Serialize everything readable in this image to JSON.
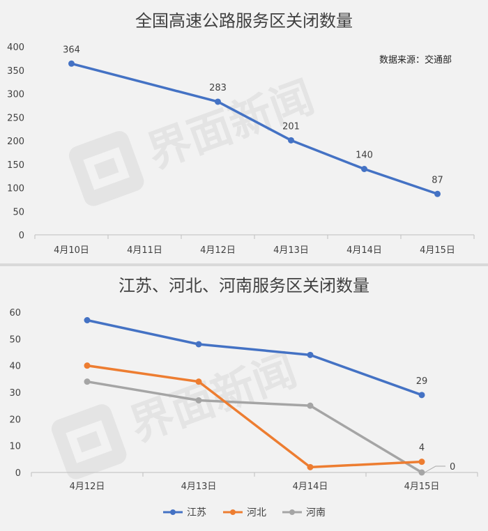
{
  "colors": {
    "jiangsu": "#4472c4",
    "hebei": "#ed7d31",
    "henan": "#a5a5a5",
    "grid": "#d0d0d0",
    "text": "#404040"
  },
  "watermark": {
    "text": "界面新闻",
    "icon": "jiemian-logo-icon"
  },
  "chart_data": [
    {
      "type": "line",
      "title": "全国高速公路服务区关闭数量",
      "annotation": "数据来源：交通部",
      "categories": [
        "4月10日",
        "4月11日",
        "4月12日",
        "4月13日",
        "4月14日",
        "4月15日"
      ],
      "ylim": [
        0,
        400
      ],
      "yticks": [
        0,
        50,
        100,
        150,
        200,
        250,
        300,
        350,
        400
      ],
      "grid": false,
      "series": [
        {
          "values": [
            364,
            283,
            201,
            140,
            87
          ],
          "x": [
            "4月10日",
            "4月12日",
            "4月13日",
            "4月14日",
            "4月15日"
          ],
          "color": "#4472c4"
        }
      ],
      "data_labels": [
        "364",
        "283",
        "201",
        "140",
        "87"
      ]
    },
    {
      "type": "line",
      "title": "江苏、河北、河南服务区关闭数量",
      "categories": [
        "4月12日",
        "4月13日",
        "4月14日",
        "4月15日"
      ],
      "ylim": [
        0,
        60
      ],
      "yticks": [
        0,
        10,
        20,
        30,
        40,
        50,
        60
      ],
      "grid": false,
      "legend": "bottom",
      "series": [
        {
          "name": "江苏",
          "values": [
            57,
            48,
            44,
            29
          ],
          "color": "#4472c4"
        },
        {
          "name": "河北",
          "values": [
            40,
            34,
            2,
            4
          ],
          "color": "#ed7d31"
        },
        {
          "name": "河南",
          "values": [
            34,
            27,
            25,
            0
          ],
          "color": "#a5a5a5"
        }
      ],
      "data_labels": [
        {
          "series": 0,
          "index": 3,
          "text": "29"
        },
        {
          "series": 1,
          "index": 3,
          "text": "4"
        },
        {
          "series": 2,
          "index": 3,
          "text": "0"
        }
      ]
    }
  ]
}
